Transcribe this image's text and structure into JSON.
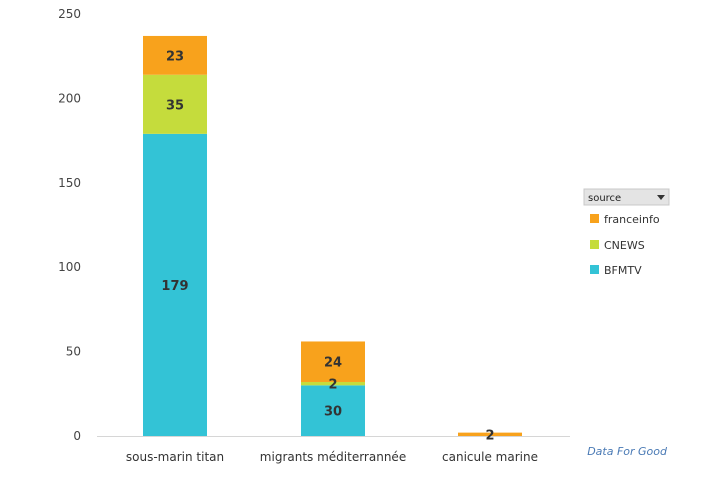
{
  "chart_data": {
    "type": "bar",
    "stacked": true,
    "categories": [
      "sous-marin titan",
      "migrants méditerrannée",
      "canicule marine"
    ],
    "series": [
      {
        "name": "BFMTV",
        "color": "#33c3d6",
        "values": [
          179,
          30,
          0
        ]
      },
      {
        "name": "CNEWS",
        "color": "#c5dc3c",
        "values": [
          35,
          2,
          0
        ]
      },
      {
        "name": "franceinfo",
        "color": "#f8a21c",
        "values": [
          23,
          24,
          2
        ]
      }
    ],
    "ylim": [
      0,
      250
    ],
    "yticks": [
      0,
      50,
      100,
      150,
      200,
      250
    ],
    "grid": false,
    "legend_position": "right",
    "legend_title": "source",
    "legend_order": [
      "franceinfo",
      "CNEWS",
      "BFMTV"
    ],
    "credit": "Data For Good"
  }
}
